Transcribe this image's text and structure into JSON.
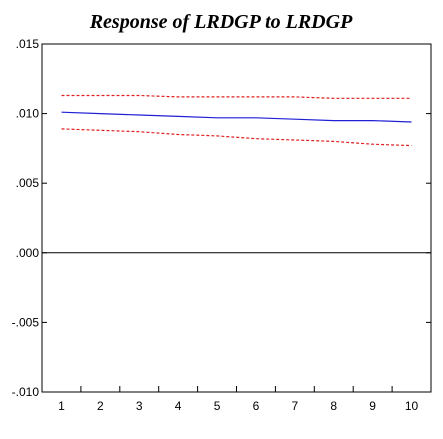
{
  "chart_data": {
    "type": "line",
    "title": "Response of LRDGP to LRDGP",
    "xlabel": "",
    "ylabel": "",
    "x": [
      1,
      2,
      3,
      4,
      5,
      6,
      7,
      8,
      9,
      10
    ],
    "xlim": [
      0.5,
      10.5
    ],
    "ylim": [
      -0.01,
      0.015
    ],
    "y_ticks": [
      ".015",
      ".010",
      ".005",
      ".000",
      "-.005",
      "-.010"
    ],
    "y_tick_values": [
      0.015,
      0.01,
      0.005,
      0.0,
      -0.005,
      -0.01
    ],
    "x_ticks": [
      "1",
      "2",
      "3",
      "4",
      "5",
      "6",
      "7",
      "8",
      "9",
      "10"
    ],
    "grid": false,
    "zero_line": true,
    "series": [
      {
        "role": "response",
        "color": "#1f1fd6",
        "style": "solid",
        "values": [
          0.0101,
          0.01,
          0.0099,
          0.0098,
          0.0097,
          0.0097,
          0.0096,
          0.0095,
          0.0095,
          0.0094
        ]
      },
      {
        "role": "upper-band",
        "color": "#e02020",
        "style": "dashed",
        "values": [
          0.0113,
          0.0113,
          0.0113,
          0.0112,
          0.0112,
          0.0112,
          0.0112,
          0.0111,
          0.0111,
          0.0111
        ]
      },
      {
        "role": "lower-band",
        "color": "#e02020",
        "style": "dashed",
        "values": [
          0.0089,
          0.0088,
          0.0087,
          0.0085,
          0.0084,
          0.0082,
          0.0081,
          0.008,
          0.0078,
          0.0077
        ]
      }
    ]
  }
}
